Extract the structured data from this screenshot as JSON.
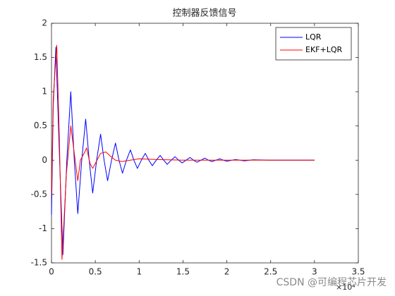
{
  "chart_data": {
    "type": "line",
    "title": "控制器反馈信号",
    "x_exponent_label": "×10⁴",
    "watermark": "CSDN @可编程芯片开发",
    "xlim": [
      0,
      3.5
    ],
    "xticks": [
      0,
      0.5,
      1,
      1.5,
      2,
      2.5,
      3,
      3.5
    ],
    "ylim": [
      -1.5,
      2
    ],
    "yticks": [
      -1.5,
      -1,
      -0.5,
      0,
      0.5,
      1,
      1.5,
      2
    ],
    "legend": "upper right",
    "series": [
      {
        "name": "LQR",
        "color": "#0000ff",
        "x": [
          0,
          0.02,
          0.05,
          0.09,
          0.13,
          0.175,
          0.22,
          0.26,
          0.3,
          0.345,
          0.39,
          0.43,
          0.47,
          0.515,
          0.56,
          0.6,
          0.64,
          0.685,
          0.73,
          0.77,
          0.81,
          0.855,
          0.9,
          0.94,
          0.98,
          1.025,
          1.07,
          1.11,
          1.15,
          1.195,
          1.24,
          1.28,
          1.32,
          1.365,
          1.41,
          1.45,
          1.49,
          1.535,
          1.58,
          1.62,
          1.66,
          1.705,
          1.75,
          1.79,
          1.83,
          1.875,
          1.92,
          1.96,
          2.0,
          2.1,
          2.2,
          2.3,
          2.5,
          3.0
        ],
        "values": [
          -0.8,
          0.8,
          1.65,
          0.1,
          -1.38,
          0,
          1.0,
          0,
          -0.78,
          0,
          0.6,
          0,
          -0.48,
          0,
          0.38,
          0,
          -0.3,
          0,
          0.25,
          0,
          -0.19,
          0,
          0.15,
          0,
          -0.12,
          0,
          0.1,
          0,
          -0.08,
          0,
          0.07,
          0,
          -0.06,
          0,
          0.05,
          0,
          -0.04,
          0,
          0.04,
          0,
          -0.03,
          0,
          0.03,
          0,
          -0.02,
          0,
          0.02,
          0,
          -0.015,
          0.01,
          -0.01,
          0.005,
          0,
          0
        ]
      },
      {
        "name": "EKF+LQR",
        "color": "#ff0000",
        "x": [
          0,
          0.02,
          0.06,
          0.09,
          0.12,
          0.17,
          0.22,
          0.26,
          0.3,
          0.33,
          0.38,
          0.4,
          0.44,
          0.47,
          0.52,
          0.56,
          0.62,
          0.68,
          0.73,
          0.8,
          0.9,
          1.0,
          1.2,
          1.5,
          2.0,
          3.0
        ],
        "values": [
          -0.5,
          0.9,
          1.68,
          0.3,
          -1.45,
          -0.2,
          0.5,
          0.1,
          -0.3,
          0,
          0.12,
          0.18,
          -0.05,
          -0.12,
          0,
          0.1,
          0.12,
          0.05,
          0,
          -0.02,
          0,
          0.02,
          0.01,
          0,
          0,
          0
        ]
      }
    ]
  }
}
